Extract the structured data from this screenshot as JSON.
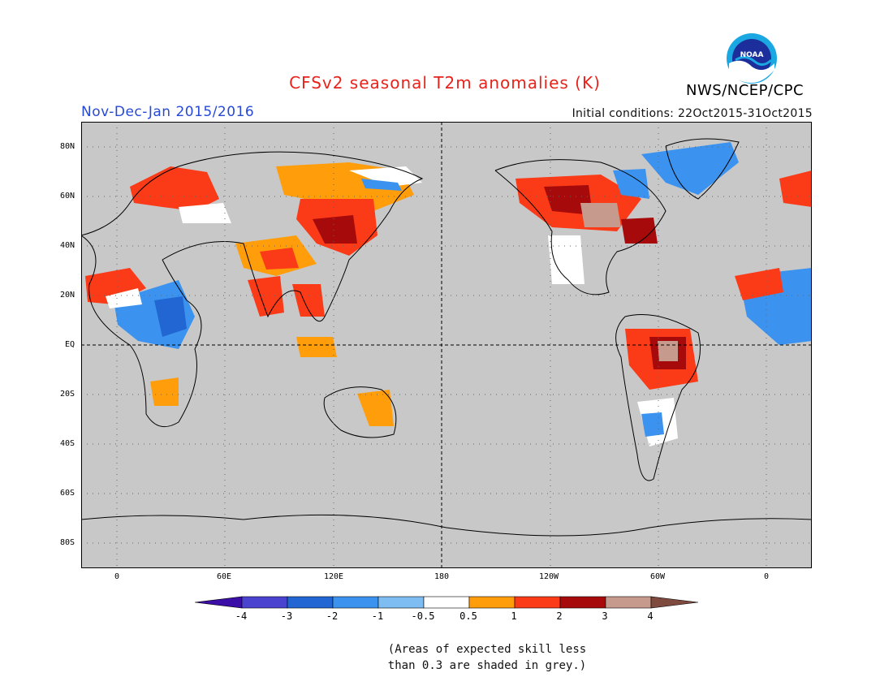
{
  "header": {
    "title": "CFSv2 seasonal T2m anomalies (K)",
    "period": "Nov-Dec-Jan 2015/2016",
    "initial_conditions": "Initial conditions: 22Oct2015-31Oct2015",
    "agency": "NWS/NCEP/CPC",
    "logo_text": "NOAA"
  },
  "map": {
    "projection": "equirectangular",
    "center_longitude": "180",
    "background_color": "#c8c8c8",
    "lat_labels": [
      "80N",
      "60N",
      "40N",
      "20N",
      "EQ",
      "20S",
      "40S",
      "60S",
      "80S"
    ],
    "lon_labels": [
      "0",
      "60E",
      "120E",
      "180",
      "120W",
      "60W",
      "0"
    ]
  },
  "legend": {
    "labels": [
      "-4",
      "-3",
      "-2",
      "-1",
      "-0.5",
      "0.5",
      "1",
      "2",
      "3",
      "4"
    ],
    "colors": [
      "#3c0ea8",
      "#4a43d0",
      "#2166d2",
      "#3b93ef",
      "#7ebdf2",
      "#ffffff",
      "#ff9d0b",
      "#fb3a17",
      "#a60a0a",
      "#c79a8e",
      "#7e4a3e"
    ]
  },
  "note": {
    "line1": "(Areas of expected skill less",
    "line2": "than 0.3 are shaded in grey.)"
  }
}
